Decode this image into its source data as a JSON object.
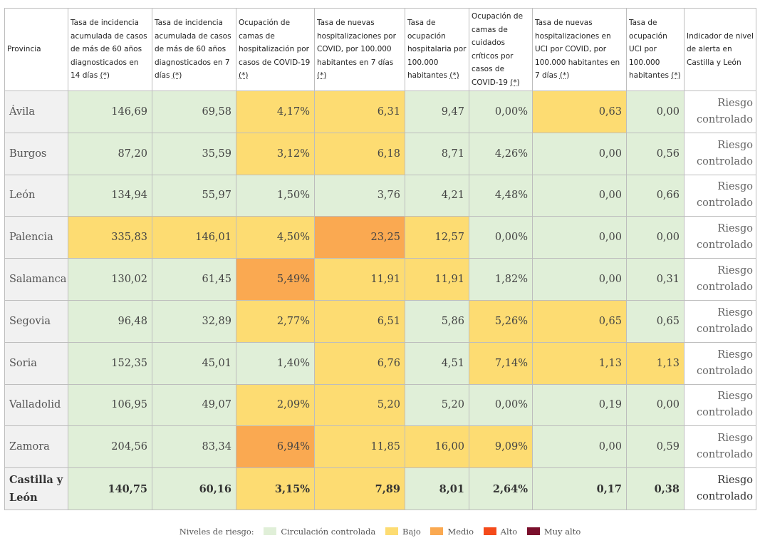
{
  "headers": [
    "Provincia",
    "Tasa de incidencia acumulada de casos de más de 60 años diagnosticados en 14 días",
    "Tasa de incidencia acumulada de casos de más de 60 años diagnosticados en 7 días",
    "Ocupación de camas de hospitalización por casos de COVID-19",
    "Tasa de nuevas hospitalizaciones por COVID, por 100.000 habitantes en 7 días",
    "Tasa de ocupación hospitalaria por 100.000 habitantes",
    "Ocupación de camas de cuidados críticos por casos de COVID-19",
    "Tasa de nuevas hospitalizaciones en UCI por COVID, por 100.000 habitantes en 7 días",
    "Tasa de ocupación UCI por 100.000 habitantes",
    "Indicador de nivel de alerta en Castilla y León"
  ],
  "asterisk_label": "(*)",
  "colors": {
    "g": "#e0efd8",
    "y": "#fddc72",
    "o": "#faa951",
    "r": "#f44a1a",
    "m": "#7a0f2c"
  },
  "rows": [
    {
      "prov": "Ávila",
      "vals": [
        "146,69",
        "69,58",
        "4,17%",
        "6,31",
        "9,47",
        "0,00%",
        "0,63",
        "0,00"
      ],
      "levels": [
        "g",
        "g",
        "y",
        "y",
        "g",
        "g",
        "y",
        "g"
      ],
      "alert": "Riesgo controlado"
    },
    {
      "prov": "Burgos",
      "vals": [
        "87,20",
        "35,59",
        "3,12%",
        "6,18",
        "8,71",
        "4,26%",
        "0,00",
        "0,56"
      ],
      "levels": [
        "g",
        "g",
        "y",
        "y",
        "g",
        "g",
        "g",
        "g"
      ],
      "alert": "Riesgo controlado"
    },
    {
      "prov": "León",
      "vals": [
        "134,94",
        "55,97",
        "1,50%",
        "3,76",
        "4,21",
        "4,48%",
        "0,00",
        "0,66"
      ],
      "levels": [
        "g",
        "g",
        "g",
        "g",
        "g",
        "g",
        "g",
        "g"
      ],
      "alert": "Riesgo controlado"
    },
    {
      "prov": "Palencia",
      "vals": [
        "335,83",
        "146,01",
        "4,50%",
        "23,25",
        "12,57",
        "0,00%",
        "0,00",
        "0,00"
      ],
      "levels": [
        "y",
        "y",
        "y",
        "o",
        "y",
        "g",
        "g",
        "g"
      ],
      "alert": "Riesgo controlado"
    },
    {
      "prov": "Salamanca",
      "vals": [
        "130,02",
        "61,45",
        "5,49%",
        "11,91",
        "11,91",
        "1,82%",
        "0,00",
        "0,31"
      ],
      "levels": [
        "g",
        "g",
        "o",
        "y",
        "y",
        "g",
        "g",
        "g"
      ],
      "alert": "Riesgo controlado"
    },
    {
      "prov": "Segovia",
      "vals": [
        "96,48",
        "32,89",
        "2,77%",
        "6,51",
        "5,86",
        "5,26%",
        "0,65",
        "0,65"
      ],
      "levels": [
        "g",
        "g",
        "y",
        "y",
        "g",
        "y",
        "y",
        "g"
      ],
      "alert": "Riesgo controlado"
    },
    {
      "prov": "Soria",
      "vals": [
        "152,35",
        "45,01",
        "1,40%",
        "6,76",
        "4,51",
        "7,14%",
        "1,13",
        "1,13"
      ],
      "levels": [
        "g",
        "g",
        "g",
        "y",
        "g",
        "y",
        "y",
        "y"
      ],
      "alert": "Riesgo controlado"
    },
    {
      "prov": "Valladolid",
      "vals": [
        "106,95",
        "49,07",
        "2,09%",
        "5,20",
        "5,20",
        "0,00%",
        "0,19",
        "0,00"
      ],
      "levels": [
        "g",
        "g",
        "y",
        "y",
        "g",
        "g",
        "g",
        "g"
      ],
      "alert": "Riesgo controlado"
    },
    {
      "prov": "Zamora",
      "vals": [
        "204,56",
        "83,34",
        "6,94%",
        "11,85",
        "16,00",
        "9,09%",
        "0,00",
        "0,59"
      ],
      "levels": [
        "g",
        "g",
        "o",
        "y",
        "y",
        "y",
        "g",
        "g"
      ],
      "alert": "Riesgo controlado"
    },
    {
      "prov": "Castilla y León",
      "vals": [
        "140,75",
        "60,16",
        "3,15%",
        "7,89",
        "8,01",
        "2,64%",
        "0,17",
        "0,38"
      ],
      "levels": [
        "g",
        "g",
        "y",
        "y",
        "g",
        "g",
        "g",
        "g"
      ],
      "alert": "Riesgo controlado",
      "total": true
    }
  ],
  "legend": {
    "title": "Niveles de riesgo:",
    "items": [
      {
        "label": "Circulación controlada",
        "color": "#e0efd8"
      },
      {
        "label": "Bajo",
        "color": "#fddc72"
      },
      {
        "label": "Medio",
        "color": "#faa951"
      },
      {
        "label": "Alto",
        "color": "#f44a1a"
      },
      {
        "label": "Muy alto",
        "color": "#7a0f2c"
      }
    ]
  }
}
